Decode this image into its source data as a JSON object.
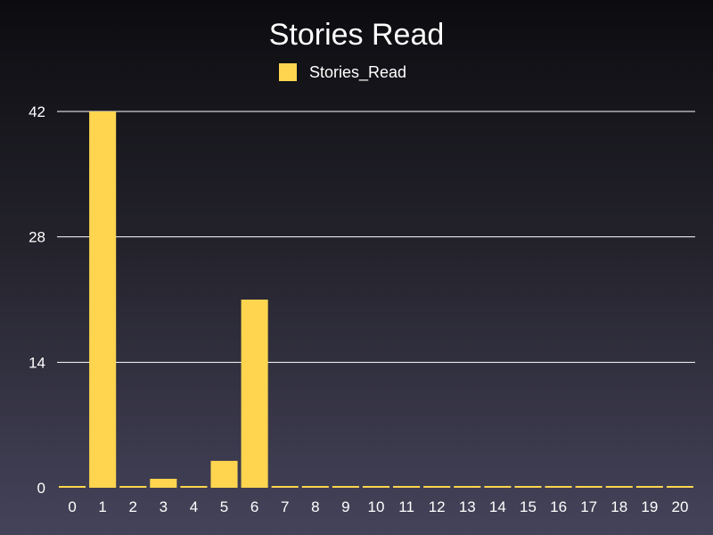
{
  "chart_data": {
    "type": "bar",
    "title": "Stories Read",
    "categories": [
      "0",
      "1",
      "2",
      "3",
      "4",
      "5",
      "6",
      "7",
      "8",
      "9",
      "10",
      "11",
      "12",
      "13",
      "14",
      "15",
      "16",
      "17",
      "18",
      "19",
      "20"
    ],
    "series": [
      {
        "name": "Stories_Read",
        "color": "#ffd54f",
        "values": [
          0,
          42,
          0,
          1,
          0,
          3,
          21,
          0,
          0,
          0,
          0,
          0,
          0,
          0,
          0,
          0,
          0,
          0,
          0,
          0,
          0
        ]
      }
    ],
    "yticks": [
      0,
      14,
      28,
      42
    ],
    "ylim": [
      0,
      42
    ],
    "grid": true,
    "legend": "top-center"
  }
}
